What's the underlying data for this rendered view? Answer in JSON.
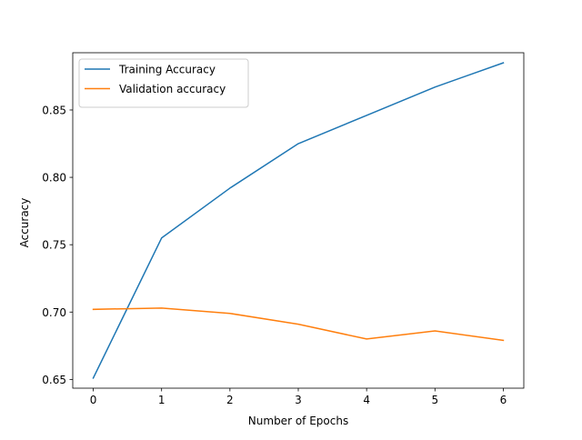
{
  "chart_data": {
    "type": "line",
    "title": "",
    "xlabel": "Number of Epochs",
    "ylabel": "Accuracy",
    "xlim": [
      -0.3,
      6.3
    ],
    "ylim": [
      0.6435,
      0.8925
    ],
    "x_ticks": [
      0,
      1,
      2,
      3,
      4,
      5,
      6
    ],
    "y_ticks": [
      0.65,
      0.7,
      0.75,
      0.8,
      0.85
    ],
    "y_tick_labels": [
      "0.65",
      "0.70",
      "0.75",
      "0.80",
      "0.85"
    ],
    "grid": false,
    "legend": "top-left",
    "x": [
      0,
      1,
      2,
      3,
      4,
      5,
      6
    ],
    "series": [
      {
        "name": "Training Accuracy",
        "color": "#1f77b4",
        "values": [
          0.651,
          0.755,
          0.792,
          0.825,
          0.846,
          0.867,
          0.885
        ]
      },
      {
        "name": "Validation accuracy",
        "color": "#ff7f0e",
        "values": [
          0.702,
          0.703,
          0.699,
          0.691,
          0.68,
          0.686,
          0.679
        ]
      }
    ]
  }
}
